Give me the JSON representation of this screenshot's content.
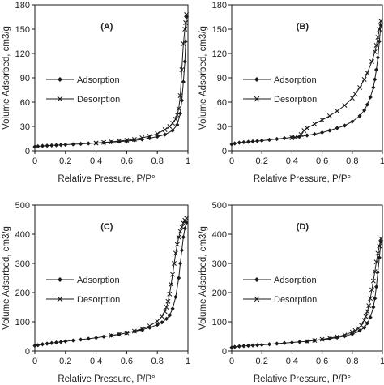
{
  "chart_data": [
    {
      "type": "line",
      "panel_label": "(A)",
      "xlabel": "Relative Pressure, P/P°",
      "ylabel": "Volume Adsorbed, cm3/g",
      "xlim": [
        0,
        1
      ],
      "ylim": [
        0,
        180
      ],
      "xticks": [
        0,
        0.2,
        0.4,
        0.6,
        0.8,
        1
      ],
      "xtick_labels": [
        "0",
        "0.2",
        "0.4",
        "0.6",
        "0.8",
        "1"
      ],
      "yticks": [
        0,
        30,
        60,
        90,
        120,
        150,
        180
      ],
      "ytick_labels": [
        "0",
        "30",
        "60",
        "90",
        "120",
        "150",
        "180"
      ],
      "grid": false,
      "legend_position": "middle-left",
      "series": [
        {
          "name": "Adsorption",
          "marker": "diamond",
          "x": [
            0.0,
            0.02,
            0.05,
            0.08,
            0.11,
            0.14,
            0.17,
            0.2,
            0.25,
            0.3,
            0.35,
            0.4,
            0.45,
            0.5,
            0.55,
            0.6,
            0.65,
            0.7,
            0.75,
            0.8,
            0.85,
            0.9,
            0.93,
            0.95,
            0.96,
            0.97,
            0.98,
            0.985,
            0.99
          ],
          "values": [
            5,
            5.5,
            6,
            6.3,
            6.6,
            6.9,
            7.2,
            7.5,
            8,
            8.5,
            9,
            9.5,
            10,
            10.6,
            11.2,
            12,
            12.8,
            14,
            15.5,
            17.5,
            20,
            25,
            32,
            46,
            62,
            85,
            110,
            135,
            165
          ]
        },
        {
          "name": "Desorption",
          "marker": "x",
          "x": [
            0.99,
            0.985,
            0.98,
            0.97,
            0.96,
            0.95,
            0.94,
            0.93,
            0.92,
            0.9,
            0.88,
            0.85,
            0.8,
            0.75,
            0.7,
            0.65,
            0.6,
            0.55,
            0.5,
            0.45,
            0.4
          ],
          "values": [
            168,
            158,
            150,
            132,
            100,
            68,
            52,
            44,
            39,
            34,
            30,
            26,
            21,
            18,
            16,
            14,
            13,
            12,
            11,
            10.3,
            9.5
          ]
        }
      ]
    },
    {
      "type": "line",
      "panel_label": "(B)",
      "xlabel": "Relative Pressure, P/P°",
      "ylabel": "Volume Adsorbed, cm3/g",
      "xlim": [
        0,
        1
      ],
      "ylim": [
        0,
        180
      ],
      "xticks": [
        0,
        0.2,
        0.4,
        0.6,
        0.8,
        1
      ],
      "xtick_labels": [
        "0",
        "0.2",
        "0.4",
        "0.6",
        "0.8",
        "1"
      ],
      "yticks": [
        0,
        30,
        60,
        90,
        120,
        150,
        180
      ],
      "ytick_labels": [
        "0",
        "30",
        "60",
        "90",
        "120",
        "150",
        "180"
      ],
      "grid": false,
      "legend_position": "middle-left",
      "series": [
        {
          "name": "Adsorption",
          "marker": "diamond",
          "x": [
            0.0,
            0.02,
            0.05,
            0.08,
            0.11,
            0.14,
            0.17,
            0.2,
            0.25,
            0.3,
            0.35,
            0.4,
            0.45,
            0.5,
            0.55,
            0.6,
            0.65,
            0.7,
            0.75,
            0.8,
            0.85,
            0.88,
            0.9,
            0.92,
            0.94,
            0.95,
            0.96,
            0.97,
            0.98,
            0.99
          ],
          "values": [
            8,
            9,
            10,
            10.5,
            11,
            11.5,
            12,
            12.5,
            13.5,
            14.5,
            15.5,
            16.5,
            17.5,
            19,
            20.5,
            22.5,
            25,
            28,
            31,
            36,
            43,
            50,
            57,
            66,
            78,
            88,
            100,
            115,
            135,
            155
          ]
        },
        {
          "name": "Desorption",
          "marker": "x",
          "x": [
            0.99,
            0.98,
            0.97,
            0.96,
            0.95,
            0.93,
            0.9,
            0.88,
            0.85,
            0.82,
            0.8,
            0.75,
            0.7,
            0.65,
            0.6,
            0.55,
            0.5,
            0.48,
            0.46,
            0.44,
            0.42,
            0.4
          ],
          "values": [
            160,
            150,
            140,
            130,
            122,
            110,
            96,
            88,
            78,
            70,
            65,
            56,
            49,
            43,
            38,
            33,
            28,
            25,
            20,
            17,
            16.5,
            16
          ]
        }
      ]
    },
    {
      "type": "line",
      "panel_label": "(C)",
      "xlabel": "Relative Pressure, P/P°",
      "ylabel": "Volume Adsorbed, cm3/g",
      "xlim": [
        0,
        1
      ],
      "ylim": [
        0,
        500
      ],
      "xticks": [
        0,
        0.2,
        0.4,
        0.6,
        0.8,
        1
      ],
      "xtick_labels": [
        "0",
        "0.2",
        "0.4",
        "0.6",
        "0.8",
        "1"
      ],
      "yticks": [
        0,
        100,
        200,
        300,
        400,
        500
      ],
      "ytick_labels": [
        "0",
        "100",
        "200",
        "300",
        "400",
        "500"
      ],
      "grid": false,
      "legend_position": "middle-left",
      "series": [
        {
          "name": "Adsorption",
          "marker": "diamond",
          "x": [
            0.0,
            0.02,
            0.05,
            0.08,
            0.11,
            0.14,
            0.17,
            0.2,
            0.25,
            0.3,
            0.35,
            0.4,
            0.45,
            0.5,
            0.55,
            0.6,
            0.65,
            0.7,
            0.75,
            0.8,
            0.83,
            0.86,
            0.88,
            0.9,
            0.92,
            0.94,
            0.95,
            0.96,
            0.97,
            0.98,
            0.99
          ],
          "values": [
            18,
            20,
            23,
            25,
            27,
            29,
            31,
            33,
            36,
            39,
            42,
            45,
            49,
            53,
            57,
            62,
            67,
            73,
            80,
            90,
            98,
            110,
            122,
            145,
            185,
            250,
            300,
            345,
            390,
            420,
            440
          ]
        },
        {
          "name": "Desorption",
          "marker": "x",
          "x": [
            0.99,
            0.98,
            0.97,
            0.96,
            0.95,
            0.94,
            0.93,
            0.92,
            0.91,
            0.9,
            0.89,
            0.88,
            0.87,
            0.86,
            0.85,
            0.83,
            0.8,
            0.75,
            0.7,
            0.65,
            0.6,
            0.55,
            0.5
          ],
          "values": [
            455,
            448,
            438,
            425,
            410,
            390,
            365,
            335,
            300,
            262,
            228,
            195,
            170,
            150,
            135,
            118,
            102,
            86,
            76,
            68,
            62,
            57,
            53
          ]
        }
      ]
    },
    {
      "type": "line",
      "panel_label": "(D)",
      "xlabel": "Relative Pressure, P/P°",
      "ylabel": "Volume Adsorbed, cm3/g",
      "xlim": [
        0,
        1
      ],
      "ylim": [
        0,
        500
      ],
      "xticks": [
        0,
        0.2,
        0.4,
        0.6,
        0.8,
        1
      ],
      "xtick_labels": [
        "0",
        "0.2",
        "0.4",
        "0.6",
        "0.8",
        "1"
      ],
      "yticks": [
        0,
        100,
        200,
        300,
        400,
        500
      ],
      "ytick_labels": [
        "0",
        "100",
        "200",
        "300",
        "400",
        "500"
      ],
      "grid": false,
      "legend_position": "middle-left",
      "series": [
        {
          "name": "Adsorption",
          "marker": "diamond",
          "x": [
            0.0,
            0.02,
            0.05,
            0.08,
            0.11,
            0.14,
            0.17,
            0.2,
            0.25,
            0.3,
            0.35,
            0.4,
            0.45,
            0.5,
            0.55,
            0.6,
            0.65,
            0.7,
            0.75,
            0.8,
            0.85,
            0.88,
            0.9,
            0.92,
            0.94,
            0.95,
            0.96,
            0.97,
            0.98,
            0.99
          ],
          "values": [
            12,
            14,
            16,
            17,
            18,
            19,
            20,
            21,
            23,
            25,
            27,
            29,
            31,
            33,
            36,
            39,
            42,
            46,
            51,
            58,
            70,
            80,
            95,
            115,
            150,
            180,
            220,
            270,
            320,
            375
          ]
        },
        {
          "name": "Desorption",
          "marker": "x",
          "x": [
            0.99,
            0.98,
            0.97,
            0.96,
            0.95,
            0.94,
            0.93,
            0.92,
            0.91,
            0.9,
            0.89,
            0.88,
            0.86,
            0.84,
            0.82,
            0.8,
            0.75,
            0.7,
            0.65,
            0.6,
            0.55,
            0.5
          ],
          "values": [
            385,
            360,
            335,
            305,
            272,
            240,
            210,
            180,
            155,
            135,
            118,
            105,
            88,
            77,
            70,
            65,
            55,
            49,
            44,
            40,
            36,
            33
          ]
        }
      ]
    }
  ]
}
